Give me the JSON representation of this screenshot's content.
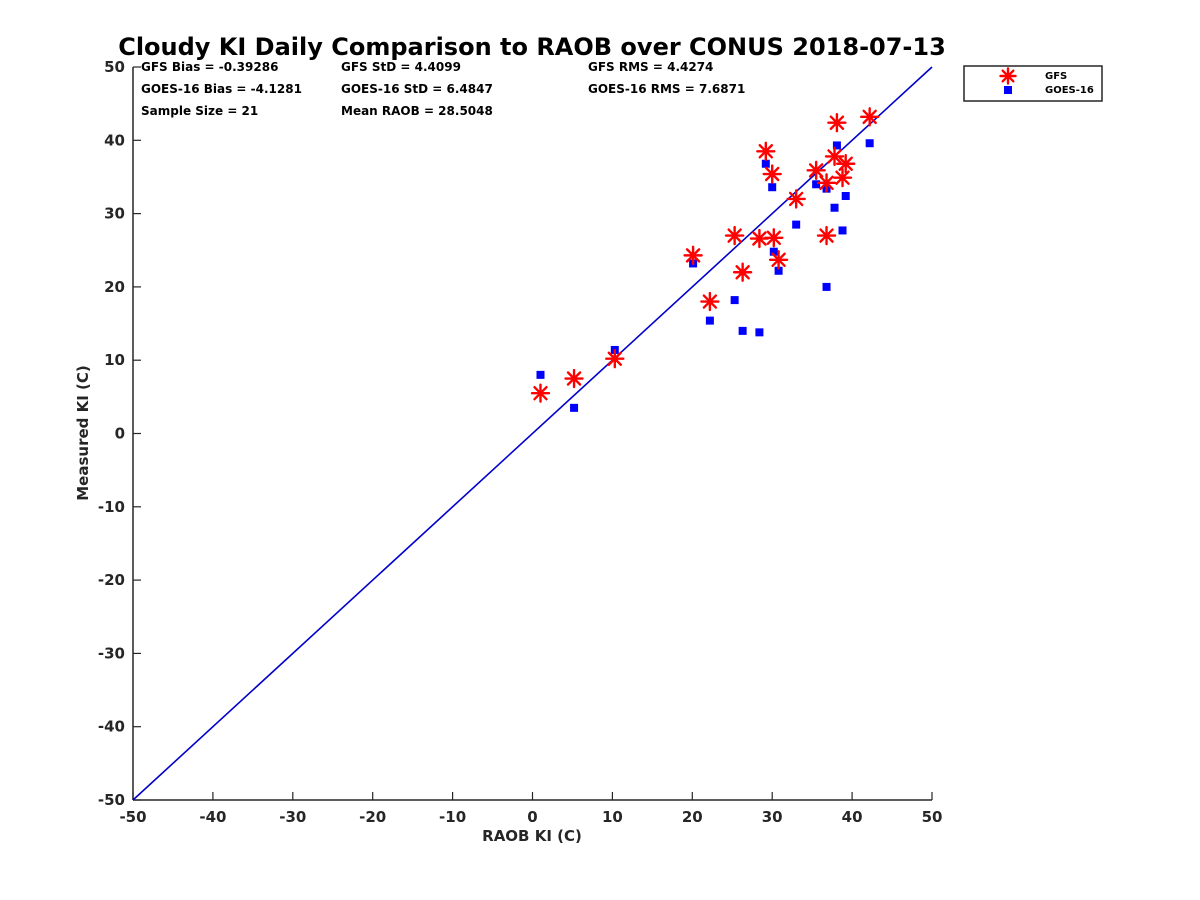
{
  "chart_data": {
    "type": "scatter",
    "title": "Cloudy KI Daily Comparison to RAOB over CONUS 2018-07-13",
    "xlabel": "RAOB KI (C)",
    "ylabel": "Measured KI (C)",
    "xlim": [
      -50,
      50
    ],
    "ylim": [
      -50,
      50
    ],
    "x_ticks": [
      "-50",
      "-40",
      "-30",
      "-20",
      "-10",
      "0",
      "10",
      "20",
      "30",
      "40",
      "50"
    ],
    "y_ticks": [
      "-50",
      "-40",
      "-30",
      "-20",
      "-10",
      "0",
      "10",
      "20",
      "30",
      "40",
      "50"
    ],
    "grid": false,
    "legend_position": "top-right",
    "reference_line": {
      "from": [
        -50,
        -50
      ],
      "to": [
        50,
        50
      ],
      "color": "#0000cc"
    },
    "stats": [
      "GFS Bias = -0.39286",
      "GFS StD = 4.4099",
      "GFS RMS = 4.4274",
      "GOES-16 Bias = -4.1281",
      "GOES-16 StD = 6.4847",
      "GOES-16 RMS = 7.6871",
      "Sample Size = 21",
      "Mean RAOB = 28.5048"
    ],
    "series": [
      {
        "name": "GFS",
        "marker": "asterisk",
        "color": "#ff0000",
        "x": [
          1.0,
          5.2,
          10.3,
          20.1,
          22.2,
          25.3,
          26.3,
          28.4,
          30.2,
          30.8,
          29.2,
          30.0,
          33.0,
          35.5,
          36.8,
          37.8,
          38.1,
          38.8,
          39.2,
          42.2,
          36.8
        ],
        "y": [
          5.5,
          7.5,
          10.2,
          24.3,
          18.0,
          27.0,
          22.0,
          26.6,
          26.7,
          23.7,
          38.5,
          35.4,
          32.0,
          35.9,
          34.2,
          37.8,
          42.4,
          34.9,
          36.8,
          43.2,
          27.0
        ]
      },
      {
        "name": "GOES-16",
        "marker": "square",
        "color": "#0000ff",
        "x": [
          1.0,
          5.2,
          10.3,
          20.1,
          22.2,
          25.3,
          26.3,
          28.4,
          30.2,
          30.8,
          29.2,
          30.0,
          33.0,
          35.5,
          36.8,
          37.8,
          38.1,
          38.8,
          39.2,
          42.2,
          36.8
        ],
        "y": [
          8.0,
          3.5,
          11.4,
          23.2,
          15.4,
          18.2,
          14.0,
          13.8,
          24.8,
          22.2,
          36.8,
          33.6,
          28.5,
          34.0,
          33.4,
          30.8,
          39.3,
          27.7,
          32.4,
          39.6,
          20.0
        ]
      }
    ]
  }
}
